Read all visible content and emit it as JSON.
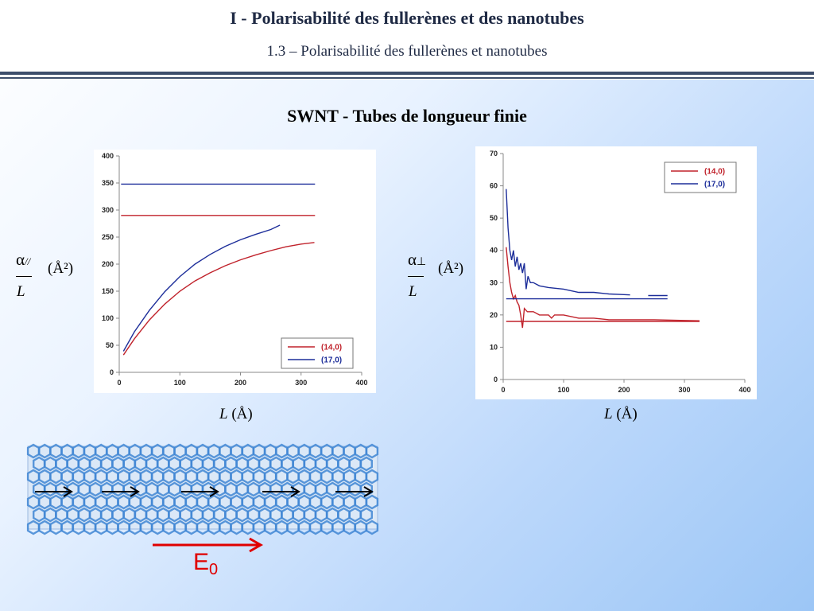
{
  "header": {
    "title": "I  - Polarisabilité des fullerènes et des nanotubes",
    "subtitle": "1.3 – Polarisabilité des fullerènes et nanotubes"
  },
  "slide": {
    "heading": "SWNT - Tubes de longueur finie"
  },
  "left_ylabel": {
    "alpha": "α",
    "subscript": "//",
    "denominator": "L",
    "unit": "(Å²)"
  },
  "right_ylabel": {
    "alpha": "α",
    "subscript": "⊥",
    "denominator": "L",
    "unit": "(Å²)"
  },
  "xlabel": {
    "var": "L",
    "unit": " (Å)"
  },
  "field": {
    "letter": "E",
    "sub": "0"
  },
  "colors": {
    "red": "#c0222b",
    "blue": "#1d2e9a",
    "arrow_red": "#e00000",
    "tube": "#3f86d4"
  },
  "chart_data": [
    {
      "type": "line",
      "xlim": [
        0,
        400
      ],
      "ylim": [
        0,
        400
      ],
      "xticks": [
        0,
        100,
        200,
        300,
        400
      ],
      "yticks": [
        0,
        50,
        100,
        150,
        200,
        250,
        300,
        350,
        400
      ],
      "grid": false,
      "legend": "bottom-right",
      "series": [
        {
          "name": "(14,0)",
          "color": "#c0222b",
          "x": [
            7,
            25,
            50,
            75,
            100,
            125,
            150,
            175,
            200,
            225,
            250,
            275,
            300,
            322
          ],
          "y": [
            32,
            62,
            97,
            126,
            150,
            169,
            184,
            197,
            208,
            217,
            225,
            232,
            237,
            240
          ]
        },
        {
          "name": "(17,0)",
          "color": "#1d2e9a",
          "x": [
            7,
            25,
            50,
            75,
            100,
            125,
            150,
            175,
            200,
            225,
            250,
            265
          ],
          "y": [
            39,
            75,
            115,
            149,
            177,
            200,
            218,
            233,
            245,
            255,
            264,
            272
          ]
        },
        {
          "name": "",
          "color": "#c0222b",
          "x": [
            3,
            323
          ],
          "y": [
            290,
            290
          ]
        },
        {
          "name": "",
          "color": "#1d2e9a",
          "x": [
            3,
            323
          ],
          "y": [
            348,
            348
          ]
        }
      ]
    },
    {
      "type": "line",
      "xlim": [
        0,
        400
      ],
      "ylim": [
        0,
        70
      ],
      "xticks": [
        0,
        100,
        200,
        300,
        400
      ],
      "yticks": [
        0,
        10,
        20,
        30,
        40,
        50,
        60,
        70
      ],
      "grid": false,
      "legend": "top-right",
      "series": [
        {
          "name": "(14,0)",
          "color": "#c0222b",
          "x": [
            5,
            8,
            11,
            14,
            17,
            20,
            23,
            26,
            29,
            32,
            35,
            40,
            50,
            60,
            75,
            80,
            85,
            100,
            125,
            150,
            175,
            200,
            250,
            300,
            325
          ],
          "y": [
            41,
            35,
            30,
            27,
            25,
            26,
            24,
            23,
            20,
            16,
            22,
            21,
            21,
            20,
            20,
            19,
            20,
            20,
            19,
            19,
            18.5,
            18.5,
            18.5,
            18.3,
            18.2
          ]
        },
        {
          "name": "(17,0)",
          "color": "#1d2e9a",
          "x": [
            5,
            8,
            11,
            14,
            17,
            20,
            23,
            26,
            29,
            32,
            35,
            38,
            41,
            45,
            50,
            60,
            75,
            100,
            125,
            150,
            175,
            200,
            210
          ],
          "y": [
            59,
            47,
            40,
            37,
            40,
            35,
            38,
            34,
            36,
            33,
            36,
            28,
            32,
            30,
            30,
            29,
            28.5,
            28,
            27,
            27,
            26.5,
            26.3,
            26.2
          ]
        },
        {
          "name": "",
          "color": "#1d2e9a",
          "x": [
            240,
            272
          ],
          "y": [
            26,
            26
          ]
        },
        {
          "name": "",
          "color": "#c0222b",
          "x": [
            5,
            325
          ],
          "y": [
            18,
            18
          ]
        },
        {
          "name": "",
          "color": "#1d2e9a",
          "x": [
            5,
            272
          ],
          "y": [
            25,
            25
          ]
        }
      ]
    }
  ]
}
